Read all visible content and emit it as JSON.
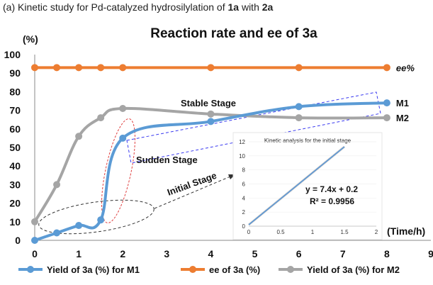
{
  "caption": {
    "prefix": "(a) Kinetic study for Pd-catalyzed hydrosilylation of ",
    "c1": "1a",
    "mid": " with ",
    "c2": "2a"
  },
  "colors": {
    "m1": "#5b9bd5",
    "ee": "#ed7d31",
    "m2": "#a5a5a5",
    "inset_line": "#4a90d9"
  },
  "chart_data": {
    "type": "line",
    "title": "Reaction rate and ee of 3a",
    "ylabel": "(%)",
    "xlabel": "(Time/h)",
    "xlim": [
      0,
      9
    ],
    "ylim": [
      0,
      100
    ],
    "xticks": [
      "0",
      "1",
      "2",
      "3",
      "4",
      "5",
      "6",
      "7",
      "8",
      "9"
    ],
    "yticks": [
      "0",
      "10",
      "20",
      "30",
      "40",
      "50",
      "60",
      "70",
      "80",
      "90",
      "100"
    ],
    "grid": false,
    "legend_position": "bottom",
    "series": [
      {
        "name": "Yield of 3a (%) for M1",
        "end_label": "M1",
        "x": [
          0,
          0.5,
          1,
          1.5,
          2,
          4,
          6,
          8
        ],
        "y": [
          0,
          4,
          8,
          11,
          55,
          64,
          72,
          74
        ]
      },
      {
        "name": "ee of 3a (%)",
        "end_label": "ee%",
        "x": [
          0,
          0.5,
          1,
          1.5,
          2,
          4,
          6,
          8
        ],
        "y": [
          93,
          93,
          93,
          93,
          93,
          93,
          93,
          93
        ]
      },
      {
        "name": "Yield of 3a (%) for M2",
        "end_label": "M2",
        "x": [
          0,
          0.5,
          1,
          1.5,
          2,
          4,
          6,
          8
        ],
        "y": [
          10,
          30,
          56,
          66,
          71,
          68,
          66,
          66
        ]
      }
    ],
    "annotations": [
      "Stable Stage",
      "Sudden Stage",
      "Initial Stage"
    ],
    "inset": {
      "title": "Kinetic analysis for the initial stage",
      "xlim": [
        0,
        2
      ],
      "ylim": [
        0,
        12
      ],
      "xticks": [
        "0",
        "0.5",
        "1",
        "1.5",
        "2"
      ],
      "yticks": [
        "0",
        "2",
        "4",
        "6",
        "8",
        "10",
        "12"
      ],
      "x": [
        0,
        0.5,
        1,
        1.5
      ],
      "y": [
        0.2,
        3.9,
        7.6,
        11.3
      ],
      "equation": "y = 7.4x + 0.2",
      "r2": "R² = 0.9956"
    }
  }
}
